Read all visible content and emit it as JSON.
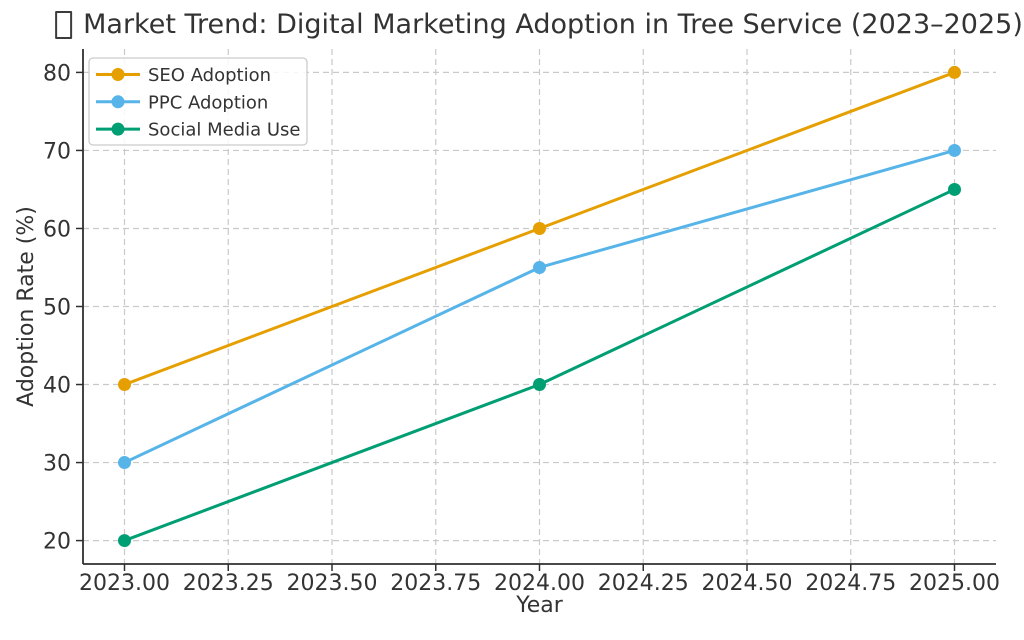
{
  "chart_data": {
    "type": "line",
    "title": "Market Trend: Digital Marketing Adoption in Tree Service (2023–2025)",
    "title_icon": "missing-glyph-box",
    "xlabel": "Year",
    "ylabel": "Adoption Rate (%)",
    "x": [
      2023,
      2024,
      2025
    ],
    "series": [
      {
        "name": "SEO Adoption",
        "color": "#E69F00",
        "values": [
          40,
          60,
          80
        ]
      },
      {
        "name": "PPC Adoption",
        "color": "#56B4E9",
        "values": [
          30,
          55,
          70
        ]
      },
      {
        "name": "Social Media Use",
        "color": "#009E73",
        "values": [
          20,
          40,
          65
        ]
      }
    ],
    "xticks": [
      2023,
      2023.25,
      2023.5,
      2023.75,
      2024,
      2024.25,
      2024.5,
      2024.75,
      2025
    ],
    "xtick_labels": [
      "2023.00",
      "2023.25",
      "2023.50",
      "2023.75",
      "2024.00",
      "2024.25",
      "2024.50",
      "2024.75",
      "2025.00"
    ],
    "yticks": [
      20,
      30,
      40,
      50,
      60,
      70,
      80
    ],
    "ytick_labels": [
      "20",
      "30",
      "40",
      "50",
      "60",
      "70",
      "80"
    ],
    "xlim": [
      2022.9,
      2025.1
    ],
    "ylim": [
      17,
      83
    ],
    "grid": true,
    "grid_style": "dashed",
    "grid_color": "#c9c9c9",
    "axis_color": "#2f2f2f",
    "text_color": "#333333",
    "legend_position": "upper-left",
    "legend_border_color": "#cccccc",
    "marker": "circle",
    "line_width": 3,
    "marker_size": 6.5
  }
}
